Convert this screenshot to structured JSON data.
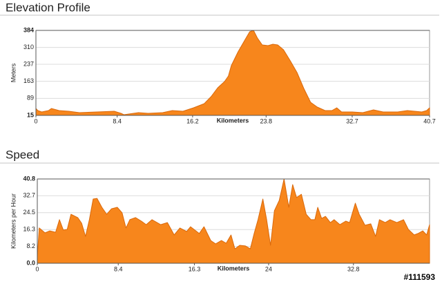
{
  "chart_data": [
    {
      "type": "area",
      "title": "Elevation Profile",
      "xlabel": "Kilometers",
      "ylabel": "Meters",
      "color": "#f7861c",
      "grid": true,
      "xlim": [
        0,
        40.7
      ],
      "ylim": [
        15,
        384
      ],
      "xticks": [
        0,
        8.4,
        16.2,
        23.8,
        32.7,
        40.7
      ],
      "yticks": [
        15,
        89,
        163,
        237,
        310,
        384
      ],
      "x": [
        0,
        0.2,
        0.6,
        1.3,
        1.6,
        2.4,
        3.4,
        4.5,
        6.3,
        8.1,
        8.8,
        9.1,
        10.6,
        11.6,
        13.1,
        14.1,
        15.2,
        16.3,
        17.4,
        18.1,
        18.8,
        19.5,
        19.9,
        20.2,
        20.9,
        21.6,
        22.1,
        22.5,
        22.9,
        23.4,
        24.0,
        24.5,
        25.0,
        25.6,
        26.3,
        27.0,
        27.7,
        28.4,
        29.1,
        29.9,
        30.6,
        31.1,
        31.6,
        32.7,
        33.8,
        34.9,
        35.9,
        37.4,
        38.4,
        39.9,
        40.4,
        40.7
      ],
      "values": [
        45,
        36,
        30,
        36,
        45,
        36,
        33,
        27,
        30,
        33,
        24,
        18,
        27,
        24,
        27,
        36,
        33,
        48,
        66,
        96,
        135,
        162,
        186,
        231,
        291,
        342,
        378,
        384,
        351,
        321,
        318,
        324,
        321,
        300,
        252,
        201,
        132,
        72,
        51,
        36,
        36,
        48,
        30,
        30,
        27,
        39,
        30,
        30,
        36,
        30,
        36,
        48
      ]
    },
    {
      "type": "area",
      "title": "Speed",
      "xlabel": "Kilometers",
      "ylabel": "Kilometers per Hour",
      "color": "#f7861c",
      "grid": true,
      "xlim": [
        0,
        40.7
      ],
      "ylim": [
        0,
        40.8
      ],
      "xticks": [
        0,
        8.4,
        16.3,
        24,
        32.8
      ],
      "yticks": [
        {
          "value": 0,
          "label": "0.0"
        },
        8.2,
        16.3,
        24.5,
        32.7,
        40.8
      ],
      "x": [
        0,
        0.2,
        0.8,
        1.3,
        1.9,
        2.3,
        2.7,
        3.1,
        3.5,
        4.2,
        4.6,
        5.0,
        5.4,
        5.8,
        6.2,
        6.7,
        7.2,
        7.7,
        8.3,
        8.8,
        9.2,
        9.6,
        10.2,
        10.8,
        11.3,
        11.9,
        12.8,
        13.5,
        14.2,
        14.8,
        15.5,
        15.9,
        16.8,
        17.3,
        18.0,
        18.5,
        19.1,
        19.6,
        20.1,
        20.5,
        21.0,
        21.6,
        22.1,
        22.5,
        22.9,
        23.4,
        23.8,
        24.2,
        24.6,
        25.1,
        25.6,
        26.1,
        26.5,
        26.9,
        27.4,
        27.9,
        28.4,
        28.8,
        29.1,
        29.5,
        29.9,
        30.4,
        30.8,
        31.4,
        32.0,
        32.4,
        33.0,
        33.4,
        34.0,
        34.6,
        35.1,
        35.5,
        36.1,
        36.6,
        37.3,
        38.0,
        38.5,
        39.1,
        39.5,
        40.0,
        40.4,
        40.7
      ],
      "values": [
        3.0,
        17.1,
        14.7,
        15.7,
        15.0,
        21.1,
        16.1,
        16.4,
        23.7,
        22.1,
        19.4,
        13.0,
        21.1,
        31.1,
        31.4,
        27.1,
        23.7,
        26.4,
        27.1,
        24.4,
        17.1,
        21.1,
        22.1,
        20.4,
        18.7,
        21.1,
        18.7,
        19.7,
        13.7,
        17.1,
        15.4,
        17.7,
        14.4,
        17.7,
        11.0,
        9.4,
        11.0,
        9.7,
        13.7,
        7.0,
        8.7,
        8.4,
        7.0,
        14.4,
        21.1,
        31.1,
        21.1,
        8.7,
        25.4,
        30.4,
        40.8,
        27.1,
        38.1,
        31.8,
        33.4,
        23.7,
        21.1,
        21.1,
        27.1,
        21.7,
        22.7,
        19.7,
        21.1,
        18.7,
        20.4,
        19.7,
        29.1,
        23.7,
        18.4,
        19.1,
        13.0,
        21.1,
        19.7,
        21.1,
        19.7,
        21.1,
        16.4,
        13.7,
        14.4,
        15.7,
        13.7,
        18.7
      ]
    }
  ],
  "watermark": "#111593"
}
